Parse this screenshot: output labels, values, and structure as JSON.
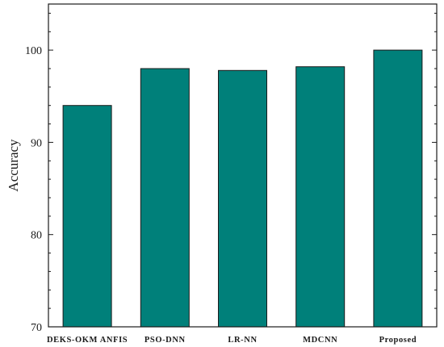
{
  "chart_data": {
    "type": "bar",
    "categories": [
      "DEKS-OKM ANFIS",
      "PSO-DNN",
      "LR-NN",
      "MDCNN",
      "Proposed"
    ],
    "values": [
      94.0,
      98.0,
      97.8,
      98.2,
      100.0
    ],
    "title": "",
    "xlabel": "",
    "ylabel": "Accuracy",
    "ylim": [
      70,
      105
    ],
    "yticks": [
      70,
      80,
      90,
      100
    ],
    "grid": false,
    "legend": "none",
    "colors": {
      "bar": "#00807a",
      "bar_edge": "#1a1a1a",
      "axis": "#1a1a1a"
    }
  }
}
